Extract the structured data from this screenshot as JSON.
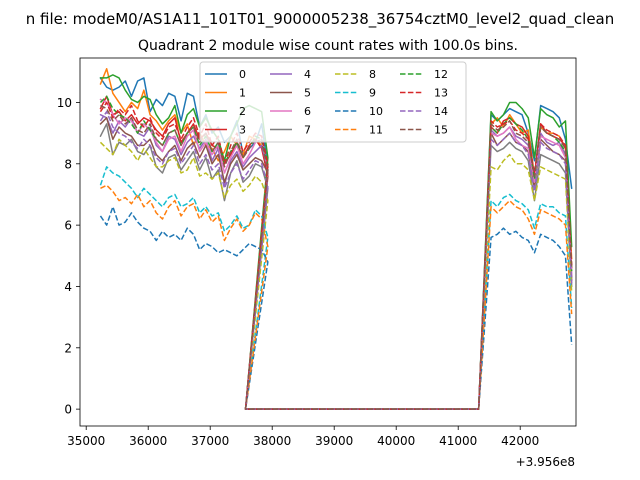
{
  "chart_data": {
    "type": "line",
    "suptitle": "n file: modeM0/AS1A11_101T01_9000005238_36754cztM0_level2_quad_clean",
    "title": "Quadrant 2 module wise count rates with 100.0s bins.",
    "xlabel": "",
    "ylabel": "",
    "x_offset_label": "+3.956e8",
    "xlim": [
      34900,
      42900
    ],
    "ylim": [
      -0.55,
      11.45
    ],
    "x_ticks": [
      35000,
      36000,
      37000,
      38000,
      39000,
      40000,
      41000,
      42000
    ],
    "y_ticks": [
      0,
      2,
      4,
      6,
      8,
      10
    ],
    "legend_position": "upper center",
    "legend_columns": 4,
    "x_start": 35230,
    "bin_width": 100,
    "gap": {
      "fall_start": 37530,
      "fall_end": 37570,
      "rise_start": 41330,
      "rise_end": 41530,
      "resume": 41530
    },
    "series": [
      {
        "name": "0",
        "color": "#1f77b4",
        "dash": "solid",
        "before": [
          10.8,
          10.5,
          10.4,
          10.5,
          10.7,
          10.2,
          10.7,
          10.8,
          9.7,
          10.1,
          9.9,
          10.3,
          10.2,
          9.4,
          10.3,
          10.2,
          9.2,
          9.6,
          9.0,
          9.2,
          8.7,
          8.9,
          9.4,
          8.3,
          8.5,
          8.7,
          9.3,
          7.9
        ],
        "after": [
          9.6,
          9.4,
          9.6,
          9.8,
          9.7,
          9.6,
          9.0,
          8.1,
          9.9,
          9.8,
          9.7,
          9.5,
          8.8,
          7.2
        ]
      },
      {
        "name": "1",
        "color": "#ff7f0e",
        "dash": "solid",
        "before": [
          10.6,
          11.1,
          10.3,
          10.0,
          9.7,
          10.0,
          9.8,
          10.4,
          9.6,
          9.4,
          9.1,
          9.4,
          9.6,
          9.0,
          9.3,
          8.6,
          9.0,
          8.6,
          8.5,
          8.1,
          8.4,
          8.9,
          8.6,
          8.3,
          8.9,
          8.8,
          8.6,
          8.0
        ],
        "after": [
          9.3,
          9.5,
          9.2,
          9.6,
          9.3,
          9.0,
          9.1,
          7.6,
          9.2,
          9.0,
          9.0,
          8.9,
          8.5,
          4.9
        ]
      },
      {
        "name": "2",
        "color": "#2ca02c",
        "dash": "solid",
        "before": [
          10.8,
          10.8,
          10.9,
          10.8,
          10.4,
          10.1,
          10.0,
          10.2,
          10.1,
          9.6,
          9.3,
          9.5,
          9.9,
          9.0,
          9.6,
          9.8,
          9.2,
          9.5,
          9.1,
          8.8,
          8.1,
          8.9,
          9.3,
          9.8,
          9.9,
          9.8,
          9.7,
          8.2
        ],
        "after": [
          9.7,
          9.4,
          9.6,
          10.0,
          10.0,
          9.8,
          9.5,
          8.2,
          9.8,
          9.6,
          9.5,
          9.2,
          9.4,
          5.3
        ]
      },
      {
        "name": "3",
        "color": "#d62728",
        "dash": "solid",
        "before": [
          9.8,
          10.2,
          9.6,
          9.7,
          9.4,
          9.6,
          9.3,
          9.5,
          9.4,
          9.1,
          8.9,
          9.3,
          9.5,
          8.7,
          9.0,
          9.3,
          8.8,
          9.0,
          8.6,
          8.5,
          8.0,
          8.3,
          8.7,
          8.2,
          8.6,
          8.8,
          8.5,
          7.6
        ],
        "after": [
          9.2,
          9.0,
          9.4,
          9.5,
          9.3,
          9.2,
          8.9,
          7.6,
          9.3,
          9.0,
          8.9,
          8.8,
          8.6,
          4.6
        ]
      },
      {
        "name": "4",
        "color": "#9467bd",
        "dash": "solid",
        "before": [
          9.6,
          9.5,
          9.0,
          9.4,
          9.2,
          9.5,
          9.0,
          8.9,
          9.2,
          8.6,
          8.4,
          8.9,
          8.8,
          8.3,
          8.7,
          8.9,
          8.5,
          8.8,
          8.1,
          8.5,
          7.3,
          8.1,
          8.4,
          7.9,
          8.2,
          8.4,
          8.6,
          7.8
        ],
        "after": [
          9.1,
          8.9,
          9.0,
          9.2,
          8.9,
          8.8,
          8.6,
          7.3,
          9.0,
          8.7,
          8.6,
          8.7,
          8.3,
          4.3
        ]
      },
      {
        "name": "5",
        "color": "#8c564b",
        "dash": "solid",
        "before": [
          9.3,
          9.5,
          8.8,
          9.2,
          9.0,
          8.9,
          8.6,
          8.6,
          8.8,
          8.3,
          8.1,
          8.4,
          8.6,
          8.1,
          8.5,
          8.7,
          8.2,
          8.6,
          8.0,
          8.3,
          7.4,
          8.0,
          8.3,
          7.8,
          8.0,
          8.2,
          8.1,
          7.7
        ],
        "after": [
          9.0,
          8.6,
          8.8,
          9.0,
          8.7,
          8.6,
          8.4,
          7.2,
          8.8,
          8.6,
          8.4,
          8.3,
          8.1,
          4.2
        ]
      },
      {
        "name": "6",
        "color": "#e377c2",
        "dash": "solid",
        "before": [
          10.1,
          10.0,
          9.6,
          9.3,
          9.5,
          9.4,
          9.0,
          9.3,
          9.1,
          8.7,
          8.4,
          8.8,
          8.9,
          8.4,
          8.9,
          9.1,
          8.4,
          8.7,
          8.3,
          8.6,
          7.7,
          8.2,
          8.6,
          8.0,
          8.3,
          8.7,
          8.8,
          7.8
        ],
        "after": [
          9.0,
          8.9,
          9.0,
          9.2,
          8.8,
          8.6,
          8.5,
          7.4,
          8.9,
          8.8,
          8.7,
          8.6,
          8.2,
          4.4
        ]
      },
      {
        "name": "7",
        "color": "#7f7f7f",
        "dash": "solid",
        "before": [
          8.9,
          9.3,
          8.3,
          8.7,
          8.6,
          8.8,
          8.4,
          8.3,
          8.6,
          7.9,
          7.7,
          8.2,
          8.3,
          7.8,
          8.1,
          8.4,
          7.8,
          8.2,
          7.5,
          7.8,
          6.8,
          7.7,
          8.1,
          7.4,
          7.6,
          8.0,
          7.9,
          7.2
        ],
        "after": [
          8.6,
          8.4,
          8.5,
          8.7,
          8.5,
          8.4,
          8.1,
          6.8,
          8.3,
          8.2,
          8.1,
          8.0,
          7.7,
          4.0
        ]
      },
      {
        "name": "8",
        "color": "#bcbd22",
        "dash": "dashed",
        "before": [
          8.7,
          8.5,
          8.3,
          8.8,
          8.6,
          8.4,
          8.1,
          8.5,
          8.2,
          7.9,
          7.9,
          8.1,
          8.2,
          7.7,
          7.8,
          8.2,
          7.6,
          7.7,
          7.5,
          7.7,
          6.9,
          7.3,
          7.5,
          7.1,
          7.3,
          7.6,
          7.4,
          6.8
        ],
        "after": [
          7.9,
          7.8,
          8.1,
          8.3,
          8.0,
          8.0,
          7.8,
          6.8,
          7.9,
          7.8,
          7.7,
          7.6,
          7.5,
          3.8
        ]
      },
      {
        "name": "9",
        "color": "#17becf",
        "dash": "dashed",
        "before": [
          7.3,
          7.9,
          7.7,
          7.6,
          7.4,
          7.2,
          6.9,
          7.2,
          7.0,
          6.8,
          6.6,
          6.9,
          7.0,
          6.6,
          6.7,
          6.9,
          6.4,
          6.6,
          6.3,
          6.4,
          5.8,
          6.0,
          6.3,
          5.9,
          6.0,
          6.5,
          6.3,
          5.6
        ],
        "after": [
          6.8,
          6.6,
          6.9,
          7.0,
          6.8,
          6.7,
          6.5,
          5.9,
          6.7,
          6.6,
          6.6,
          6.4,
          6.3,
          3.3
        ]
      },
      {
        "name": "10",
        "color": "#1f77b4",
        "dash": "dashed",
        "before": [
          6.3,
          6.0,
          6.6,
          6.0,
          6.1,
          6.4,
          6.1,
          5.9,
          5.8,
          5.5,
          5.8,
          5.6,
          5.7,
          5.5,
          5.9,
          5.7,
          5.2,
          5.4,
          5.3,
          5.1,
          5.2,
          5.1,
          5.0,
          5.2,
          5.4,
          5.3,
          5.2,
          4.8
        ],
        "after": [
          5.6,
          5.7,
          5.9,
          5.7,
          5.8,
          5.6,
          5.5,
          5.1,
          5.7,
          5.6,
          5.5,
          5.3,
          5.0,
          2.1
        ]
      },
      {
        "name": "11",
        "color": "#ff7f0e",
        "dash": "dashed",
        "before": [
          7.2,
          7.3,
          7.1,
          6.8,
          6.9,
          6.7,
          7.0,
          6.6,
          6.8,
          6.4,
          6.2,
          6.6,
          6.8,
          6.3,
          6.6,
          6.7,
          6.2,
          6.5,
          6.1,
          6.3,
          5.5,
          5.9,
          6.2,
          5.8,
          6.0,
          6.4,
          6.2,
          5.3
        ],
        "after": [
          6.6,
          6.4,
          6.6,
          6.8,
          6.6,
          6.5,
          6.2,
          5.7,
          6.5,
          6.4,
          6.3,
          6.2,
          6.0,
          3.1
        ]
      },
      {
        "name": "12",
        "color": "#2ca02c",
        "dash": "dashed",
        "before": [
          10.0,
          10.2,
          9.8,
          9.6,
          9.5,
          9.3,
          9.0,
          9.4,
          9.1,
          8.8,
          8.6,
          9.0,
          9.1,
          8.6,
          9.0,
          9.2,
          8.6,
          8.9,
          8.4,
          8.7,
          8.0,
          8.4,
          8.7,
          8.2,
          8.5,
          8.9,
          8.8,
          7.9
        ],
        "after": [
          9.2,
          9.0,
          9.3,
          9.5,
          9.3,
          9.1,
          8.8,
          7.5,
          9.2,
          9.0,
          8.9,
          8.7,
          8.4,
          4.5
        ]
      },
      {
        "name": "13",
        "color": "#d62728",
        "dash": "dashed",
        "before": [
          9.7,
          10.0,
          9.5,
          9.8,
          9.6,
          9.9,
          9.4,
          9.2,
          9.5,
          9.0,
          8.8,
          9.2,
          9.3,
          8.8,
          9.2,
          9.5,
          8.9,
          9.3,
          8.6,
          8.9,
          8.0,
          8.6,
          9.0,
          8.4,
          8.7,
          9.0,
          8.9,
          8.0
        ],
        "after": [
          9.4,
          9.2,
          9.3,
          9.4,
          9.1,
          9.0,
          8.8,
          7.7,
          9.3,
          9.1,
          9.0,
          8.9,
          8.6,
          4.7
        ]
      },
      {
        "name": "14",
        "color": "#9467bd",
        "dash": "dashed",
        "before": [
          9.4,
          9.7,
          9.2,
          9.0,
          8.9,
          8.7,
          8.5,
          8.8,
          8.6,
          8.2,
          8.0,
          8.4,
          8.5,
          8.0,
          8.3,
          8.6,
          8.0,
          8.3,
          7.8,
          8.0,
          7.2,
          7.7,
          8.0,
          7.5,
          7.8,
          8.1,
          8.0,
          7.3
        ],
        "after": [
          8.8,
          8.6,
          8.8,
          9.0,
          8.7,
          8.6,
          8.3,
          7.1,
          8.7,
          8.5,
          8.4,
          8.3,
          8.0,
          4.1
        ]
      },
      {
        "name": "15",
        "color": "#8c564b",
        "dash": "dashed",
        "before": [
          9.9,
          9.8,
          9.4,
          9.6,
          9.3,
          9.5,
          9.1,
          9.0,
          9.3,
          8.8,
          8.6,
          9.0,
          9.1,
          8.6,
          9.0,
          9.2,
          8.7,
          9.0,
          8.4,
          8.7,
          7.9,
          8.4,
          8.8,
          8.2,
          8.5,
          8.8,
          8.7,
          7.8
        ],
        "after": [
          9.3,
          9.1,
          9.2,
          9.4,
          9.0,
          8.9,
          8.7,
          7.6,
          9.2,
          9.0,
          8.9,
          8.8,
          8.5,
          4.6
        ]
      }
    ]
  }
}
